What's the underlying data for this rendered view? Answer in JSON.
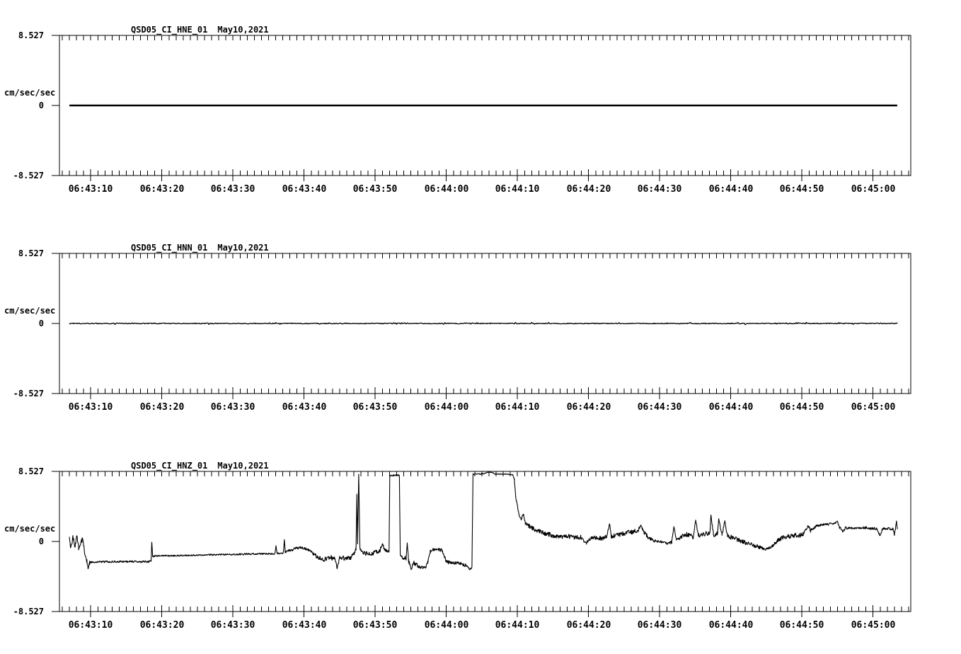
{
  "page": {
    "background": "#ffffff",
    "ink": "#000000"
  },
  "chart_data": [
    {
      "type": "line",
      "title": "QSD05_CI_HNE_01",
      "date": "May10,2021",
      "ylabel": "cm/sec/sec",
      "ylim": [
        -8.527,
        8.527
      ],
      "y_tick_labels": [
        "8.527",
        "0",
        "-8.527"
      ],
      "x_range_seconds_after_064300": [
        5.6,
        125.3
      ],
      "x_major_ticks_seconds": [
        10,
        20,
        30,
        40,
        50,
        60,
        70,
        80,
        90,
        100,
        110,
        120
      ],
      "x_minor_tick_interval_seconds": 1,
      "x_tick_labels": [
        "06:43:10",
        "06:43:20",
        "06:43:30",
        "06:43:40",
        "06:43:50",
        "06:44:00",
        "06:44:10",
        "06:44:20",
        "06:44:30",
        "06:44:40",
        "06:44:50",
        "06:45:00"
      ],
      "grid": false,
      "legend": false,
      "trace": {
        "start_s": 7.0,
        "end_s": 123.4,
        "sample_step_s": 1.0,
        "stroke_px": 2.4,
        "noise_amp": 0,
        "burst_prob": 0,
        "burst_scale": 1,
        "anchors": [
          [
            7.0,
            0,
            0
          ],
          [
            123.4,
            0,
            0
          ]
        ]
      }
    },
    {
      "type": "line",
      "title": "QSD05_CI_HNN_01",
      "date": "May10,2021",
      "ylabel": "cm/sec/sec",
      "ylim": [
        -8.527,
        8.527
      ],
      "y_tick_labels": [
        "8.527",
        "0",
        "-8.527"
      ],
      "x_range_seconds_after_064300": [
        5.6,
        125.3
      ],
      "x_major_ticks_seconds": [
        10,
        20,
        30,
        40,
        50,
        60,
        70,
        80,
        90,
        100,
        110,
        120
      ],
      "x_minor_tick_interval_seconds": 1,
      "x_tick_labels": [
        "06:43:10",
        "06:43:20",
        "06:43:30",
        "06:43:40",
        "06:43:50",
        "06:44:00",
        "06:44:10",
        "06:44:20",
        "06:44:30",
        "06:44:40",
        "06:44:50",
        "06:45:00"
      ],
      "grid": false,
      "legend": false,
      "trace": {
        "start_s": 7.0,
        "end_s": 123.4,
        "sample_step_s": 0.1,
        "stroke_px": 1.3,
        "noise_amp": 0.06,
        "burst_prob": 0.05,
        "burst_scale": 2.5,
        "anchors": [
          [
            7.0,
            0,
            0.06
          ],
          [
            123.4,
            0,
            0.06
          ]
        ]
      }
    },
    {
      "type": "line",
      "title": "QSD05_CI_HNZ_01",
      "date": "May10,2021",
      "ylabel": "cm/sec/sec",
      "ylim": [
        -8.527,
        8.527
      ],
      "y_tick_labels": [
        "8.527",
        "0",
        "-8.527"
      ],
      "x_range_seconds_after_064300": [
        5.6,
        125.3
      ],
      "x_major_ticks_seconds": [
        10,
        20,
        30,
        40,
        50,
        60,
        70,
        80,
        90,
        100,
        110,
        120
      ],
      "x_minor_tick_interval_seconds": 1,
      "x_tick_labels": [
        "06:43:10",
        "06:43:20",
        "06:43:30",
        "06:43:40",
        "06:43:50",
        "06:44:00",
        "06:44:10",
        "06:44:20",
        "06:44:30",
        "06:44:40",
        "06:44:50",
        "06:45:00"
      ],
      "grid": false,
      "legend": false,
      "trace": {
        "start_s": 7.0,
        "end_s": 123.4,
        "sample_step_s": 0.05,
        "stroke_px": 1.1,
        "noise_amp": 0.18,
        "burst_prob": 0,
        "burst_scale": 1,
        "anchors": [
          [
            7.0,
            0.45,
            0.15
          ],
          [
            7.2,
            -0.85,
            0.3
          ],
          [
            7.5,
            0.55,
            0.25
          ],
          [
            7.8,
            -0.6,
            0.3
          ],
          [
            8.05,
            0.8,
            0.15
          ],
          [
            8.3,
            -0.9,
            0.35
          ],
          [
            8.6,
            -0.2,
            0.45
          ],
          [
            8.9,
            0.3,
            0.3
          ],
          [
            9.15,
            -1.2,
            0.4
          ],
          [
            9.45,
            -2.3,
            0.4
          ],
          [
            9.62,
            -3.3,
            0.12
          ],
          [
            9.85,
            -2.6,
            0.25
          ],
          [
            10.1,
            -2.5,
            0.13
          ],
          [
            14.0,
            -2.45,
            0.13
          ],
          [
            18.2,
            -2.45,
            0.13
          ],
          [
            18.5,
            -2.35,
            0.1
          ],
          [
            18.58,
            -0.05,
            0.02
          ],
          [
            18.7,
            -1.8,
            0.12
          ],
          [
            20.0,
            -1.75,
            0.1
          ],
          [
            24.0,
            -1.7,
            0.1
          ],
          [
            28.0,
            -1.6,
            0.1
          ],
          [
            31.0,
            -1.55,
            0.12
          ],
          [
            34.0,
            -1.5,
            0.12
          ],
          [
            35.9,
            -1.5,
            0.1
          ],
          [
            36.05,
            -0.5,
            0.03
          ],
          [
            36.2,
            -1.45,
            0.12
          ],
          [
            37.1,
            -1.4,
            0.15
          ],
          [
            37.22,
            0.25,
            0.03
          ],
          [
            37.35,
            -1.25,
            0.18
          ],
          [
            38.2,
            -1.05,
            0.2
          ],
          [
            39.0,
            -0.8,
            0.18
          ],
          [
            39.8,
            -0.75,
            0.18
          ],
          [
            40.6,
            -1.05,
            0.2
          ],
          [
            41.4,
            -1.6,
            0.25
          ],
          [
            42.2,
            -2.05,
            0.3
          ],
          [
            43.0,
            -2.2,
            0.32
          ],
          [
            43.7,
            -1.95,
            0.3
          ],
          [
            44.3,
            -2.05,
            0.3
          ],
          [
            44.65,
            -3.25,
            0.12
          ],
          [
            45.0,
            -1.95,
            0.28
          ],
          [
            45.8,
            -2.0,
            0.3
          ],
          [
            46.5,
            -2.05,
            0.3
          ],
          [
            47.0,
            -1.55,
            0.25
          ],
          [
            47.3,
            -0.9,
            0.3
          ],
          [
            47.42,
            5.8,
            0.08
          ],
          [
            47.52,
            -0.3,
            0.12
          ],
          [
            47.68,
            8.25,
            0.03
          ],
          [
            47.85,
            -0.8,
            0.25
          ],
          [
            48.2,
            -1.4,
            0.28
          ],
          [
            49.0,
            -1.45,
            0.3
          ],
          [
            49.8,
            -1.4,
            0.28
          ],
          [
            50.6,
            -1.2,
            0.3
          ],
          [
            51.0,
            -0.35,
            0.25
          ],
          [
            51.3,
            -0.95,
            0.3
          ],
          [
            51.7,
            -1.3,
            0.25
          ],
          [
            51.95,
            -1.25,
            0.2
          ],
          [
            52.05,
            8.05,
            0.12
          ],
          [
            53.4,
            8.05,
            0.12
          ],
          [
            53.52,
            -1.55,
            0.12
          ],
          [
            53.8,
            -1.95,
            0.22
          ],
          [
            54.35,
            -2.05,
            0.3
          ],
          [
            54.5,
            -0.15,
            0.06
          ],
          [
            54.68,
            -2.3,
            0.3
          ],
          [
            55.05,
            -3.35,
            0.15
          ],
          [
            55.4,
            -2.6,
            0.3
          ],
          [
            55.95,
            -2.95,
            0.28
          ],
          [
            56.5,
            -3.15,
            0.22
          ],
          [
            57.0,
            -3.2,
            0.18
          ],
          [
            57.4,
            -2.6,
            0.3
          ],
          [
            57.75,
            -1.2,
            0.18
          ],
          [
            58.1,
            -1.0,
            0.18
          ],
          [
            58.9,
            -0.95,
            0.22
          ],
          [
            59.4,
            -1.1,
            0.2
          ],
          [
            59.65,
            -1.7,
            0.22
          ],
          [
            60.0,
            -2.45,
            0.22
          ],
          [
            60.6,
            -2.6,
            0.22
          ],
          [
            61.5,
            -2.65,
            0.26
          ],
          [
            62.4,
            -2.75,
            0.26
          ],
          [
            62.9,
            -3.0,
            0.3
          ],
          [
            63.3,
            -3.35,
            0.18
          ],
          [
            63.6,
            -3.15,
            0.12
          ],
          [
            63.75,
            8.2,
            0.07
          ],
          [
            64.8,
            8.2,
            0.07
          ],
          [
            65.5,
            8.3,
            0.06
          ],
          [
            65.9,
            8.45,
            0.04
          ],
          [
            66.4,
            8.4,
            0.05
          ],
          [
            66.9,
            8.2,
            0.07
          ],
          [
            68.0,
            8.2,
            0.06
          ],
          [
            69.3,
            8.15,
            0.07
          ],
          [
            69.55,
            7.6,
            0.12
          ],
          [
            69.75,
            5.4,
            0.15
          ],
          [
            69.95,
            4.6,
            0.12
          ],
          [
            70.2,
            3.3,
            0.18
          ],
          [
            70.5,
            2.7,
            0.22
          ],
          [
            70.85,
            3.3,
            0.12
          ],
          [
            71.1,
            2.3,
            0.25
          ],
          [
            71.6,
            1.9,
            0.28
          ],
          [
            72.2,
            1.55,
            0.3
          ],
          [
            72.9,
            1.3,
            0.28
          ],
          [
            73.6,
            1.05,
            0.3
          ],
          [
            74.4,
            0.85,
            0.3
          ],
          [
            75.2,
            0.65,
            0.28
          ],
          [
            76.2,
            0.55,
            0.26
          ],
          [
            77.2,
            0.6,
            0.3
          ],
          [
            78.0,
            0.45,
            0.26
          ],
          [
            78.9,
            0.55,
            0.3
          ],
          [
            79.65,
            -0.25,
            0.18
          ],
          [
            80.1,
            0.35,
            0.26
          ],
          [
            81.0,
            0.45,
            0.3
          ],
          [
            81.9,
            0.35,
            0.28
          ],
          [
            82.6,
            0.7,
            0.26
          ],
          [
            82.95,
            2.15,
            0.06
          ],
          [
            83.2,
            0.6,
            0.26
          ],
          [
            84.1,
            0.8,
            0.3
          ],
          [
            85.1,
            1.0,
            0.3
          ],
          [
            86.1,
            1.15,
            0.3
          ],
          [
            87.0,
            1.4,
            0.28
          ],
          [
            87.35,
            2.0,
            0.1
          ],
          [
            87.8,
            1.1,
            0.28
          ],
          [
            88.4,
            0.5,
            0.24
          ],
          [
            89.1,
            0.1,
            0.2
          ],
          [
            90.0,
            -0.05,
            0.22
          ],
          [
            90.9,
            -0.2,
            0.2
          ],
          [
            91.7,
            -0.1,
            0.24
          ],
          [
            92.0,
            1.85,
            0.06
          ],
          [
            92.35,
            0.25,
            0.24
          ],
          [
            93.1,
            0.6,
            0.3
          ],
          [
            93.9,
            0.85,
            0.34
          ],
          [
            94.7,
            0.6,
            0.34
          ],
          [
            95.05,
            2.6,
            0.06
          ],
          [
            95.45,
            0.7,
            0.3
          ],
          [
            96.3,
            0.95,
            0.34
          ],
          [
            97.05,
            1.0,
            0.3
          ],
          [
            97.2,
            3.25,
            0.04
          ],
          [
            97.55,
            0.8,
            0.3
          ],
          [
            98.15,
            0.95,
            0.3
          ],
          [
            98.3,
            2.8,
            0.04
          ],
          [
            98.75,
            0.7,
            0.3
          ],
          [
            99.15,
            2.5,
            0.06
          ],
          [
            99.55,
            0.65,
            0.34
          ],
          [
            100.3,
            0.5,
            0.3
          ],
          [
            101.0,
            0.2,
            0.3
          ],
          [
            101.8,
            -0.1,
            0.3
          ],
          [
            102.6,
            -0.35,
            0.3
          ],
          [
            103.4,
            -0.5,
            0.28
          ],
          [
            104.1,
            -0.7,
            0.24
          ],
          [
            104.7,
            -0.95,
            0.16
          ],
          [
            105.3,
            -0.8,
            0.2
          ],
          [
            105.9,
            -0.45,
            0.24
          ],
          [
            106.6,
            0.1,
            0.24
          ],
          [
            107.3,
            0.5,
            0.26
          ],
          [
            108.1,
            0.6,
            0.3
          ],
          [
            108.9,
            0.75,
            0.3
          ],
          [
            109.7,
            0.7,
            0.34
          ],
          [
            110.3,
            1.0,
            0.3
          ],
          [
            110.85,
            1.9,
            0.12
          ],
          [
            111.2,
            1.35,
            0.3
          ],
          [
            111.8,
            1.8,
            0.22
          ],
          [
            112.6,
            2.0,
            0.16
          ],
          [
            113.5,
            2.1,
            0.16
          ],
          [
            114.4,
            2.15,
            0.16
          ],
          [
            115.0,
            2.4,
            0.1
          ],
          [
            115.3,
            1.6,
            0.2
          ],
          [
            115.7,
            1.35,
            0.24
          ],
          [
            116.3,
            1.65,
            0.2
          ],
          [
            117.1,
            1.6,
            0.16
          ],
          [
            118.0,
            1.65,
            0.16
          ],
          [
            118.9,
            1.7,
            0.2
          ],
          [
            119.7,
            1.55,
            0.16
          ],
          [
            120.5,
            1.6,
            0.2
          ],
          [
            120.95,
            0.7,
            0.16
          ],
          [
            121.35,
            1.55,
            0.2
          ],
          [
            122.1,
            1.6,
            0.16
          ],
          [
            122.8,
            1.5,
            0.2
          ],
          [
            123.0,
            0.8,
            0.2
          ],
          [
            123.15,
            1.55,
            0.16
          ],
          [
            123.3,
            2.55,
            0.06
          ],
          [
            123.4,
            1.6,
            0.12
          ]
        ]
      }
    }
  ]
}
